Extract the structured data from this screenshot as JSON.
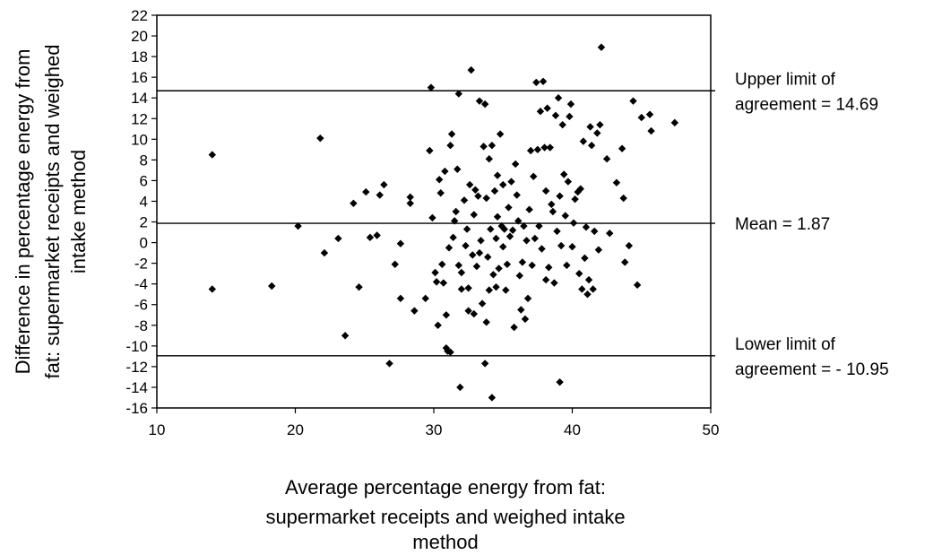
{
  "chart_data": {
    "type": "scatter",
    "xlabel": [
      "Average percentage energy from fat:",
      "supermarket receipts and weighed intake",
      "method"
    ],
    "ylabel": [
      "Difference in percentage energy from",
      "fat: supermarket receipts and weighed",
      "intake method"
    ],
    "xlim": [
      10,
      50
    ],
    "ylim": [
      -16,
      22
    ],
    "xticks": [
      "10",
      "20",
      "30",
      "40",
      "50"
    ],
    "yticks": [
      "22",
      "20",
      "18",
      "16",
      "14",
      "12",
      "10",
      "8",
      "6",
      "4",
      "2",
      "0",
      "-2",
      "-4",
      "-6",
      "-8",
      "-10",
      "-12",
      "-14",
      "-16"
    ],
    "grid": false,
    "reference_lines": [
      {
        "y": 14.69,
        "label": [
          "Upper limit of",
          "agreement = 14.69"
        ]
      },
      {
        "y": 1.87,
        "label": [
          "Mean = 1.87"
        ]
      },
      {
        "y": -10.95,
        "label": [
          "Lower limit of",
          "agreement = - 10.95"
        ]
      }
    ],
    "points": [
      [
        14,
        8.5
      ],
      [
        14,
        -4.5
      ],
      [
        18.3,
        -4.2
      ],
      [
        20.2,
        1.6
      ],
      [
        21.8,
        10.1
      ],
      [
        22.1,
        -1.0
      ],
      [
        23.1,
        0.4
      ],
      [
        23.6,
        -9.0
      ],
      [
        24.2,
        3.8
      ],
      [
        24.6,
        -4.3
      ],
      [
        25.1,
        4.9
      ],
      [
        25.4,
        0.5
      ],
      [
        25.9,
        0.7
      ],
      [
        26.1,
        4.6
      ],
      [
        26.4,
        5.6
      ],
      [
        26.8,
        -11.7
      ],
      [
        27.2,
        -2.1
      ],
      [
        27.6,
        -5.4
      ],
      [
        27.6,
        -0.1
      ],
      [
        28.3,
        4.4
      ],
      [
        28.3,
        3.8
      ],
      [
        28.6,
        -6.6
      ],
      [
        29.4,
        -5.4
      ],
      [
        29.7,
        8.9
      ],
      [
        29.8,
        15.0
      ],
      [
        29.9,
        2.4
      ],
      [
        30.1,
        -2.9
      ],
      [
        30.2,
        -3.8
      ],
      [
        30.3,
        -8.0
      ],
      [
        30.4,
        6.1
      ],
      [
        30.5,
        4.8
      ],
      [
        30.6,
        -2.1
      ],
      [
        30.7,
        -3.9
      ],
      [
        30.8,
        6.9
      ],
      [
        30.9,
        -10.2
      ],
      [
        30.9,
        -7.0
      ],
      [
        31.0,
        -10.5
      ],
      [
        31.1,
        -0.5
      ],
      [
        31.2,
        -10.6
      ],
      [
        31.2,
        9.4
      ],
      [
        31.3,
        10.5
      ],
      [
        31.4,
        0.5
      ],
      [
        31.5,
        2.1
      ],
      [
        31.6,
        3.0
      ],
      [
        31.7,
        7.1
      ],
      [
        31.8,
        -2.2
      ],
      [
        31.8,
        14.4
      ],
      [
        31.9,
        -14.0
      ],
      [
        32.0,
        -4.5
      ],
      [
        32.0,
        -2.9
      ],
      [
        32.2,
        4.1
      ],
      [
        32.3,
        -0.3
      ],
      [
        32.4,
        1.3
      ],
      [
        32.5,
        -6.6
      ],
      [
        32.5,
        -4.4
      ],
      [
        32.6,
        5.6
      ],
      [
        32.7,
        16.7
      ],
      [
        32.8,
        -1.2
      ],
      [
        32.9,
        -6.9
      ],
      [
        32.9,
        2.7
      ],
      [
        33.0,
        5.1
      ],
      [
        33.1,
        -2.3
      ],
      [
        33.2,
        4.5
      ],
      [
        33.3,
        13.7
      ],
      [
        33.3,
        -1.0
      ],
      [
        33.4,
        0.2
      ],
      [
        33.5,
        -5.9
      ],
      [
        33.6,
        9.3
      ],
      [
        33.7,
        13.4
      ],
      [
        33.7,
        -11.7
      ],
      [
        33.8,
        -7.7
      ],
      [
        33.8,
        4.3
      ],
      [
        33.9,
        -1.4
      ],
      [
        34.0,
        -4.6
      ],
      [
        34.0,
        8.1
      ],
      [
        34.1,
        1.3
      ],
      [
        34.2,
        9.4
      ],
      [
        34.2,
        -15.0
      ],
      [
        34.3,
        -3.1
      ],
      [
        34.4,
        5.0
      ],
      [
        34.5,
        0.4
      ],
      [
        34.5,
        -4.3
      ],
      [
        34.6,
        2.5
      ],
      [
        34.6,
        6.5
      ],
      [
        34.7,
        -2.5
      ],
      [
        34.8,
        10.5
      ],
      [
        34.9,
        1.6
      ],
      [
        35.0,
        -0.4
      ],
      [
        35.0,
        5.6
      ],
      [
        35.1,
        1.3
      ],
      [
        35.2,
        -4.6
      ],
      [
        35.3,
        -2.1
      ],
      [
        35.4,
        3.4
      ],
      [
        35.5,
        0.6
      ],
      [
        35.6,
        5.9
      ],
      [
        35.7,
        1.2
      ],
      [
        35.8,
        -8.2
      ],
      [
        35.9,
        7.6
      ],
      [
        36.0,
        4.6
      ],
      [
        36.1,
        2.1
      ],
      [
        36.2,
        -3.2
      ],
      [
        36.3,
        -6.5
      ],
      [
        36.4,
        -1.9
      ],
      [
        36.5,
        1.6
      ],
      [
        36.6,
        -7.4
      ],
      [
        36.7,
        0.2
      ],
      [
        36.8,
        -5.4
      ],
      [
        36.9,
        3.2
      ],
      [
        37.0,
        8.9
      ],
      [
        37.1,
        -2.2
      ],
      [
        37.2,
        6.4
      ],
      [
        37.3,
        0.4
      ],
      [
        37.4,
        15.5
      ],
      [
        37.5,
        9.0
      ],
      [
        37.6,
        1.6
      ],
      [
        37.7,
        12.7
      ],
      [
        37.8,
        -0.6
      ],
      [
        37.9,
        15.6
      ],
      [
        38.0,
        9.2
      ],
      [
        38.1,
        5.0
      ],
      [
        38.1,
        -3.6
      ],
      [
        38.2,
        13.0
      ],
      [
        38.3,
        -2.4
      ],
      [
        38.4,
        9.2
      ],
      [
        38.5,
        3.7
      ],
      [
        38.6,
        3.0
      ],
      [
        38.7,
        -3.9
      ],
      [
        38.8,
        12.3
      ],
      [
        38.9,
        1.1
      ],
      [
        39.0,
        14.0
      ],
      [
        39.1,
        4.5
      ],
      [
        39.1,
        -13.5
      ],
      [
        39.2,
        -0.3
      ],
      [
        39.3,
        11.4
      ],
      [
        39.4,
        6.6
      ],
      [
        39.5,
        2.6
      ],
      [
        39.6,
        -2.2
      ],
      [
        39.7,
        5.9
      ],
      [
        39.8,
        12.2
      ],
      [
        39.9,
        13.4
      ],
      [
        40.0,
        -0.4
      ],
      [
        40.1,
        1.9
      ],
      [
        40.2,
        4.2
      ],
      [
        40.4,
        4.9
      ],
      [
        40.5,
        -3.0
      ],
      [
        40.6,
        5.2
      ],
      [
        40.7,
        -4.5
      ],
      [
        40.8,
        9.8
      ],
      [
        40.9,
        -1.5
      ],
      [
        41.0,
        1.5
      ],
      [
        41.1,
        -5.0
      ],
      [
        41.2,
        -3.6
      ],
      [
        41.3,
        11.2
      ],
      [
        41.4,
        9.4
      ],
      [
        41.5,
        -4.5
      ],
      [
        41.6,
        1.1
      ],
      [
        41.8,
        10.6
      ],
      [
        41.9,
        -0.7
      ],
      [
        42.0,
        11.4
      ],
      [
        42.1,
        18.9
      ],
      [
        42.5,
        8.1
      ],
      [
        42.7,
        0.9
      ],
      [
        43.2,
        5.8
      ],
      [
        43.6,
        9.1
      ],
      [
        43.7,
        4.3
      ],
      [
        43.8,
        -1.9
      ],
      [
        44.1,
        -0.3
      ],
      [
        44.4,
        13.7
      ],
      [
        44.7,
        -4.1
      ],
      [
        45.0,
        12.1
      ],
      [
        45.6,
        12.4
      ],
      [
        45.7,
        10.8
      ],
      [
        47.4,
        11.6
      ]
    ]
  }
}
